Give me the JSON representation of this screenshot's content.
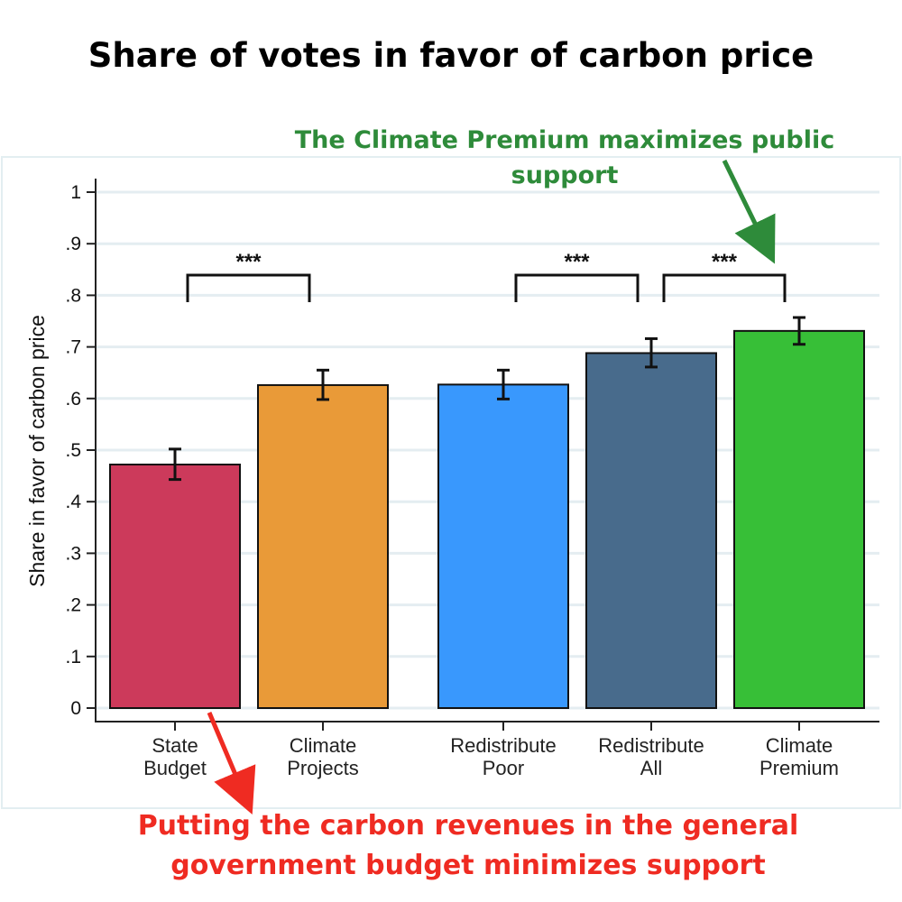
{
  "chart_data": {
    "type": "bar",
    "title": "Share of votes in favor of carbon price",
    "ylabel": "Share in favor of carbon price",
    "xlabel": "",
    "ylim": [
      0,
      1
    ],
    "ytick_labels": [
      "0",
      ".1",
      ".2",
      ".3",
      ".4",
      ".5",
      ".6",
      ".7",
      ".8",
      ".9",
      "1"
    ],
    "ytick_values": [
      0,
      0.1,
      0.2,
      0.3,
      0.4,
      0.5,
      0.6,
      0.7,
      0.8,
      0.9,
      1.0
    ],
    "grid": true,
    "bars": [
      {
        "label_lines": [
          "State",
          "Budget"
        ],
        "value": 0.472,
        "ci": [
          0.443,
          0.502
        ],
        "color": "#cc3a5b"
      },
      {
        "label_lines": [
          "Climate",
          "Projects"
        ],
        "value": 0.626,
        "ci": [
          0.598,
          0.655
        ],
        "color": "#e99a38"
      },
      {
        "label_lines": [
          "Redistribute",
          "Poor"
        ],
        "value": 0.627,
        "ci": [
          0.599,
          0.655
        ],
        "color": "#3998fd"
      },
      {
        "label_lines": [
          "Redistribute",
          "All"
        ],
        "value": 0.688,
        "ci": [
          0.661,
          0.716
        ],
        "color": "#486b8c"
      },
      {
        "label_lines": [
          "Climate",
          "Premium"
        ],
        "value": 0.731,
        "ci": [
          0.705,
          0.757
        ],
        "color": "#37bf37"
      }
    ],
    "significance_brackets": [
      {
        "from": 0,
        "to": 1,
        "label": "***"
      },
      {
        "from": 2,
        "to": 3,
        "label": "***"
      },
      {
        "from": 3,
        "to": 4,
        "label": "***"
      }
    ],
    "annotations": {
      "top": {
        "lines": [
          "The Climate Premium maximizes public",
          "support"
        ],
        "color": "#2e8b3a",
        "points_to": 4
      },
      "bottom": {
        "lines": [
          "Putting the carbon revenues in the general",
          "government budget minimizes support"
        ],
        "color": "#ef2b22",
        "points_to": 0
      }
    }
  }
}
